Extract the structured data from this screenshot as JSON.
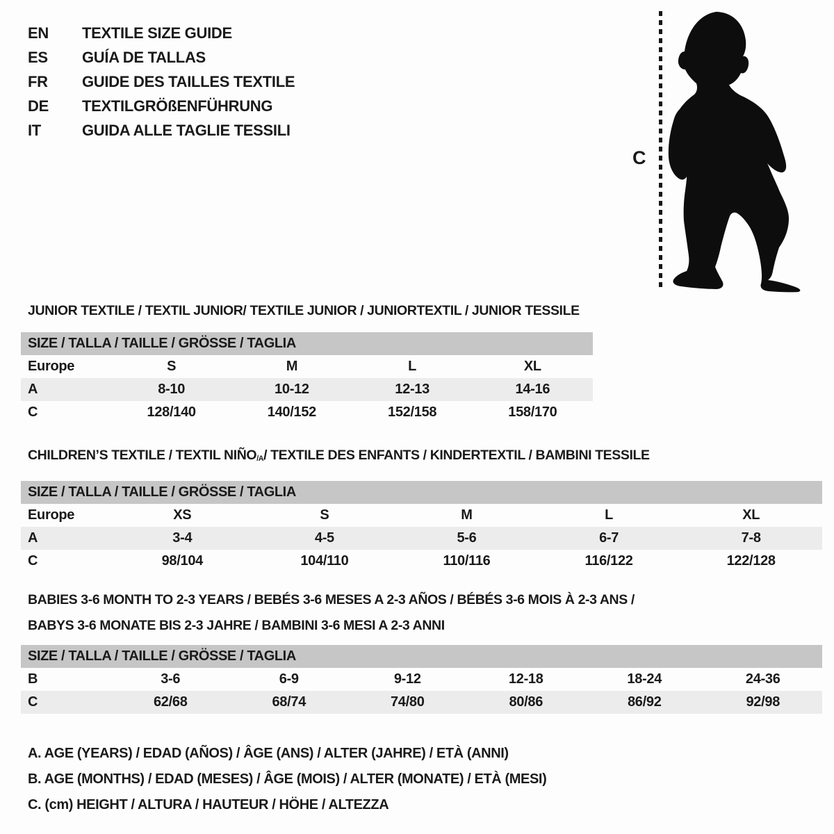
{
  "colors": {
    "page_background": "#fdfdfd",
    "table_header_bg": "#c6c6c6",
    "table_stripe_bg": "#ececec",
    "text": "#1a1a1a",
    "silhouette": "#0d0d0d"
  },
  "languages": [
    {
      "code": "EN",
      "title": "TEXTILE SIZE GUIDE"
    },
    {
      "code": "ES",
      "title": "GUÍA DE TALLAS"
    },
    {
      "code": "FR",
      "title": "GUIDE DES TAILLES TEXTILE"
    },
    {
      "code": "DE",
      "title": "TEXTILGRÖßENFÜHRUNG"
    },
    {
      "code": "IT",
      "title": "GUIDA ALLE TAGLIE TESSILI"
    }
  ],
  "figure": {
    "measure_label": "C",
    "depicts": "baby-silhouette"
  },
  "size_row_header": "SIZE / TALLA / TAILLE / GRÖSSE / TAGLIA",
  "tables": [
    {
      "id": "junior",
      "title_segments": [
        {
          "t": "JUNIOR TEXTILE / TEXTIL JUNIOR/ TEXTILE JUNIOR / JUNIORTEXTIL / JUNIOR TESSILE"
        }
      ],
      "rows": [
        [
          "Europe",
          "S",
          "M",
          "L",
          "XL"
        ],
        [
          "A",
          "8-10",
          "10-12",
          "12-13",
          "14-16"
        ],
        [
          "C",
          "128/140",
          "140/152",
          "152/158",
          "158/170"
        ]
      ]
    },
    {
      "id": "children",
      "title_segments": [
        {
          "t": "CHILDREN’S TEXTILE / TEXTIL NIÑO"
        },
        {
          "t": "/A",
          "sub": true
        },
        {
          "t": " / TEXTILE DES ENFANTS / KINDERTEXTIL / BAMBINI TESSILE"
        }
      ],
      "rows": [
        [
          "Europe",
          "XS",
          "S",
          "M",
          "L",
          "XL"
        ],
        [
          "A",
          "3-4",
          "4-5",
          "5-6",
          "6-7",
          "7-8"
        ],
        [
          "C",
          "98/104",
          "104/110",
          "110/116",
          "116/122",
          "122/128"
        ]
      ]
    },
    {
      "id": "babies",
      "title_segments": [
        {
          "t": "BABIES 3-6 MONTH TO 2-3 YEARS / BEBÉS 3-6 MESES A 2-3 AÑOS / BÉBÉS 3-6 MOIS À 2-3 ANS /"
        }
      ],
      "title_line2": "BABYS 3-6 MONATE BIS 2-3 JAHRE / BAMBINI 3-6 MESI A 2-3 ANNI",
      "rows": [
        [
          "B",
          "3-6",
          "6-9",
          "9-12",
          "12-18",
          "18-24",
          "24-36"
        ],
        [
          "C",
          "62/68",
          "68/74",
          "74/80",
          "80/86",
          "86/92",
          "92/98"
        ]
      ]
    }
  ],
  "legend": [
    "A. AGE (YEARS) / EDAD (AÑOS) / ÂGE (ANS) / ALTER (JAHRE) / ETÀ (ANNI)",
    "B. AGE (MONTHS) / EDAD (MESES) / ÂGE (MOIS) / ALTER (MONATE) / ETÀ (MESI)",
    "C. (cm) HEIGHT / ALTURA / HAUTEUR / HÖHE / ALTEZZA"
  ]
}
